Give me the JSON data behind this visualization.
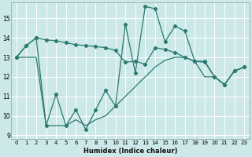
{
  "xlabel": "Humidex (Indice chaleur)",
  "xlim": [
    -0.5,
    23.5
  ],
  "ylim": [
    8.8,
    15.8
  ],
  "yticks": [
    9,
    10,
    11,
    12,
    13,
    14,
    15
  ],
  "xticks": [
    0,
    1,
    2,
    3,
    4,
    5,
    6,
    7,
    8,
    9,
    10,
    11,
    12,
    13,
    14,
    15,
    16,
    17,
    18,
    19,
    20,
    21,
    22,
    23
  ],
  "background_color": "#cce8e8",
  "grid_color": "#ffffff",
  "line_color": "#2a7a70",
  "line1_x": [
    0,
    1,
    2,
    3,
    4,
    5,
    6,
    7,
    8,
    9,
    10,
    11,
    12,
    13,
    14,
    15,
    16,
    17,
    18,
    19,
    20,
    21,
    22,
    23
  ],
  "line1_y": [
    13.0,
    13.6,
    14.0,
    13.9,
    13.85,
    13.75,
    13.65,
    13.6,
    13.55,
    13.5,
    13.35,
    12.75,
    12.8,
    12.65,
    13.5,
    13.4,
    13.25,
    13.0,
    12.8,
    12.75,
    12.0,
    11.6,
    12.3,
    12.5
  ],
  "line2_x": [
    0,
    1,
    2,
    3,
    4,
    5,
    6,
    7,
    8,
    9,
    10,
    11,
    12,
    13,
    14,
    15,
    16,
    17,
    18,
    19,
    20,
    21,
    22,
    23
  ],
  "line2_y": [
    13.0,
    13.6,
    14.0,
    9.5,
    11.1,
    9.5,
    10.3,
    9.3,
    10.3,
    11.3,
    10.5,
    14.7,
    12.2,
    15.6,
    15.5,
    13.8,
    14.6,
    14.35,
    12.8,
    12.8,
    12.0,
    11.6,
    12.3,
    12.5
  ],
  "line3_x": [
    0,
    1,
    2,
    3,
    4,
    5,
    6,
    7,
    8,
    9,
    10,
    11,
    12,
    13,
    14,
    15,
    16,
    17,
    18,
    19,
    20,
    21,
    22,
    23
  ],
  "line3_y": [
    13.0,
    13.0,
    13.0,
    9.5,
    9.5,
    9.5,
    9.8,
    9.5,
    9.8,
    10.0,
    10.5,
    11.0,
    11.5,
    12.0,
    12.5,
    12.85,
    13.0,
    13.0,
    12.8,
    12.0,
    12.0,
    11.6,
    12.3,
    12.5
  ]
}
